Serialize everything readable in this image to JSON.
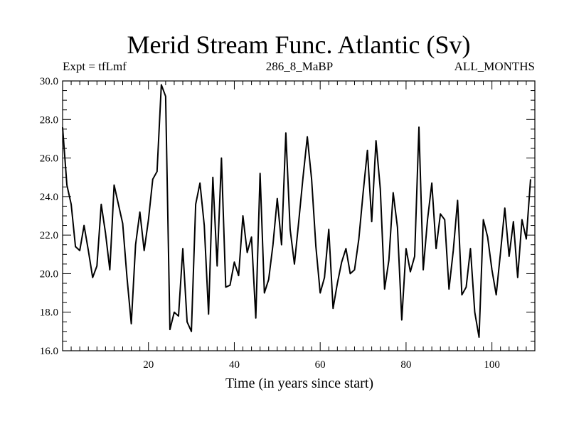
{
  "chart_data": {
    "type": "line",
    "title": "Merid Stream Func. Atlantic (Sv)",
    "subtitle_left": "Expt = tfLmf",
    "subtitle_center": "286_8_MaBP",
    "subtitle_right": "ALL_MONTHS",
    "xlabel": "Time (in years since start)",
    "ylabel": "",
    "xlim": [
      0,
      110
    ],
    "ylim": [
      16.0,
      30.0
    ],
    "xticks": [
      20,
      40,
      60,
      80,
      100
    ],
    "xtick_labels": [
      "20",
      "40",
      "60",
      "80",
      "100"
    ],
    "yticks": [
      16.0,
      18.0,
      20.0,
      22.0,
      24.0,
      26.0,
      28.0,
      30.0
    ],
    "ytick_labels": [
      "16.0",
      "18.0",
      "20.0",
      "22.0",
      "24.0",
      "26.0",
      "28.0",
      "30.0"
    ],
    "x_start": 0,
    "x_step": 1,
    "series": [
      {
        "name": "Merid Stream Func. Atlantic",
        "color": "#000000",
        "values": [
          27.6,
          24.6,
          23.6,
          21.4,
          21.2,
          22.5,
          21.2,
          19.8,
          20.4,
          23.6,
          22.1,
          20.2,
          24.6,
          23.6,
          22.6,
          19.8,
          17.4,
          21.5,
          23.2,
          21.2,
          22.8,
          24.9,
          25.3,
          29.8,
          29.2,
          17.1,
          18.0,
          17.8,
          21.3,
          17.5,
          17.0,
          23.6,
          24.7,
          22.5,
          17.9,
          25.0,
          20.4,
          26.0,
          19.3,
          19.4,
          20.6,
          19.9,
          23.0,
          21.1,
          21.9,
          17.7,
          25.2,
          19.0,
          19.7,
          21.5,
          23.9,
          21.5,
          27.3,
          22.3,
          20.5,
          22.7,
          25.0,
          27.1,
          24.9,
          21.4,
          19.0,
          19.8,
          22.3,
          18.2,
          19.5,
          20.6,
          21.3,
          20.0,
          20.2,
          21.8,
          24.2,
          26.4,
          22.7,
          26.9,
          24.4,
          19.2,
          20.7,
          24.2,
          22.4,
          17.6,
          21.3,
          20.1,
          20.9,
          27.6,
          20.2,
          22.8,
          24.7,
          21.3,
          23.1,
          22.8,
          19.2,
          21.2,
          23.8,
          18.9,
          19.3,
          21.3,
          18.0,
          16.7,
          22.8,
          21.9,
          20.2,
          18.9,
          21.1,
          23.4,
          20.9,
          22.7,
          19.8,
          22.8,
          21.8,
          24.9
        ]
      }
    ]
  }
}
